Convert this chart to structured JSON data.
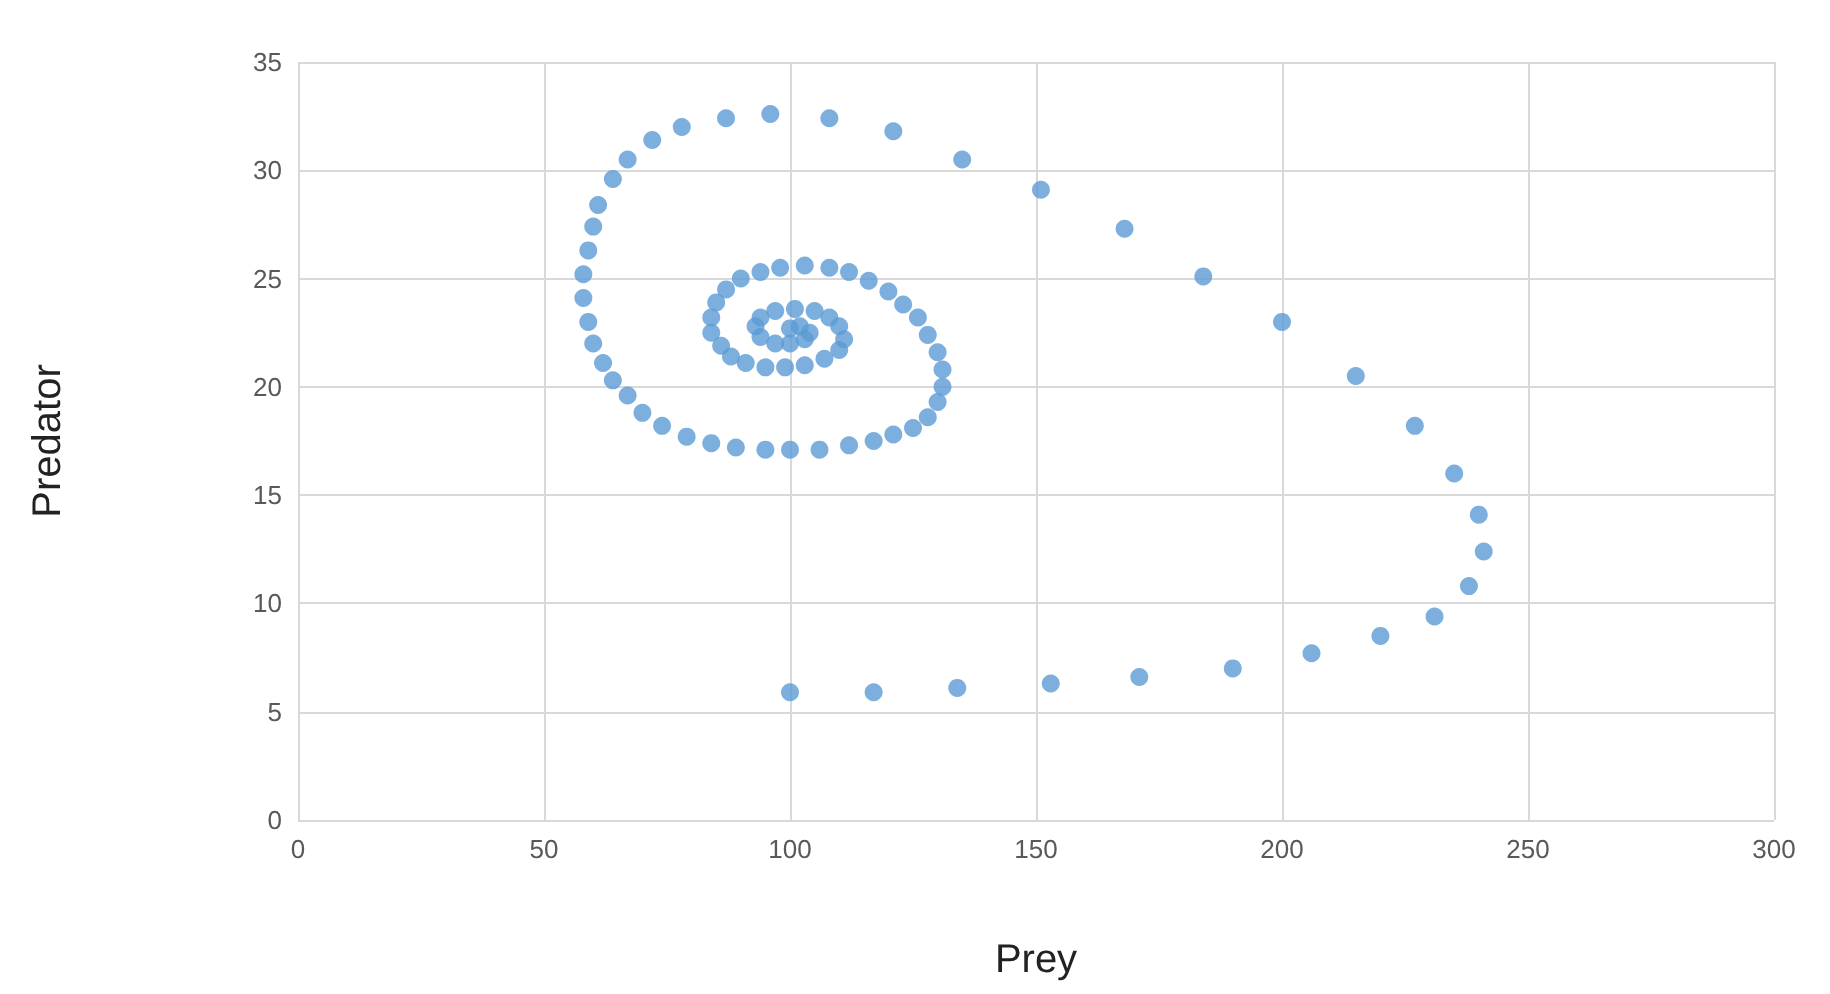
{
  "chart_data": {
    "type": "scatter",
    "xlabel": "Prey",
    "ylabel": "Predator",
    "color": "#5b9bd5",
    "marker": "circle",
    "grid": true,
    "xlim": [
      0,
      300
    ],
    "xticks": [
      0,
      50,
      100,
      150,
      200,
      250,
      300
    ],
    "ylim": [
      0,
      35
    ],
    "yticks": [
      0,
      5,
      10,
      15,
      20,
      25,
      30,
      35
    ],
    "x": [
      100,
      117,
      134,
      153,
      171,
      190,
      206,
      220,
      231,
      238,
      241,
      240,
      235,
      227,
      215,
      200,
      184,
      168,
      151,
      135,
      121,
      108,
      96,
      87,
      78,
      72,
      67,
      64,
      61,
      60,
      59,
      58,
      58,
      59,
      60,
      62,
      64,
      67,
      70,
      74,
      79,
      84,
      89,
      95,
      100,
      106,
      112,
      117,
      121,
      125,
      128,
      130,
      131,
      131,
      130,
      128,
      126,
      123,
      120,
      116,
      112,
      108,
      103,
      98,
      94,
      90,
      87,
      85,
      84,
      84,
      86,
      88,
      91,
      95,
      99,
      103,
      107,
      110,
      111,
      110,
      108,
      105,
      101,
      97,
      94,
      93,
      94,
      97,
      100,
      103,
      104,
      102,
      100
    ],
    "values": [
      5.9,
      5.9,
      6.1,
      6.3,
      6.6,
      7.0,
      7.7,
      8.5,
      9.4,
      10.8,
      12.4,
      14.1,
      16.0,
      18.2,
      20.5,
      23.0,
      25.1,
      27.3,
      29.1,
      30.5,
      31.8,
      32.4,
      32.6,
      32.4,
      32.0,
      31.4,
      30.5,
      29.6,
      28.4,
      27.4,
      26.3,
      25.2,
      24.1,
      23.0,
      22.0,
      21.1,
      20.3,
      19.6,
      18.8,
      18.2,
      17.7,
      17.4,
      17.2,
      17.1,
      17.1,
      17.1,
      17.3,
      17.5,
      17.8,
      18.1,
      18.6,
      19.3,
      20.0,
      20.8,
      21.6,
      22.4,
      23.2,
      23.8,
      24.4,
      24.9,
      25.3,
      25.5,
      25.6,
      25.5,
      25.3,
      25.0,
      24.5,
      23.9,
      23.2,
      22.5,
      21.9,
      21.4,
      21.1,
      20.9,
      20.9,
      21.0,
      21.3,
      21.7,
      22.2,
      22.8,
      23.2,
      23.5,
      23.6,
      23.5,
      23.2,
      22.8,
      22.3,
      22.0,
      22.0,
      22.2,
      22.5,
      22.8,
      22.7
    ]
  }
}
